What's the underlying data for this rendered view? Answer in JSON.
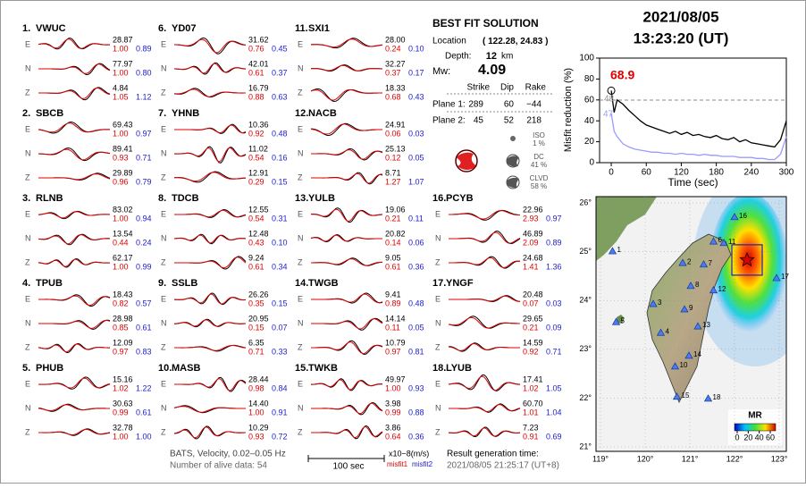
{
  "component_labels": [
    "E",
    "N",
    "Z"
  ],
  "stations": [
    {
      "num": "1.",
      "name": "VWUC",
      "components": [
        {
          "amp": "28.87",
          "misfit1": "1.00",
          "misfit2": "0.89"
        },
        {
          "amp": "77.97",
          "misfit1": "1.00",
          "misfit2": "0.80"
        },
        {
          "amp": "4.84",
          "misfit1": "1.05",
          "misfit2": "1.12"
        }
      ]
    },
    {
      "num": "2.",
      "name": "SBCB",
      "components": [
        {
          "amp": "69.43",
          "misfit1": "1.00",
          "misfit2": "0.97"
        },
        {
          "amp": "89.41",
          "misfit1": "0.93",
          "misfit2": "0.71"
        },
        {
          "amp": "29.89",
          "misfit1": "0.96",
          "misfit2": "0.79"
        }
      ]
    },
    {
      "num": "3.",
      "name": "RLNB",
      "components": [
        {
          "amp": "83.02",
          "misfit1": "1.00",
          "misfit2": "0.94"
        },
        {
          "amp": "13.54",
          "misfit1": "0.44",
          "misfit2": "0.24"
        },
        {
          "amp": "62.17",
          "misfit1": "1.00",
          "misfit2": "0.99"
        }
      ]
    },
    {
      "num": "4.",
      "name": "TPUB",
      "components": [
        {
          "amp": "18.43",
          "misfit1": "0.82",
          "misfit2": "0.57"
        },
        {
          "amp": "28.98",
          "misfit1": "0.85",
          "misfit2": "0.61"
        },
        {
          "amp": "12.09",
          "misfit1": "0.97",
          "misfit2": "0.83"
        }
      ]
    },
    {
      "num": "5.",
      "name": "PHUB",
      "components": [
        {
          "amp": "15.16",
          "misfit1": "1.02",
          "misfit2": "1.22"
        },
        {
          "amp": "30.63",
          "misfit1": "0.99",
          "misfit2": "0.61"
        },
        {
          "amp": "32.78",
          "misfit1": "1.00",
          "misfit2": "1.00"
        }
      ]
    },
    {
      "num": "6.",
      "name": "YD07",
      "components": [
        {
          "amp": "31.62",
          "misfit1": "0.76",
          "misfit2": "0.45"
        },
        {
          "amp": "42.01",
          "misfit1": "0.61",
          "misfit2": "0.37"
        },
        {
          "amp": "16.79",
          "misfit1": "0.88",
          "misfit2": "0.63"
        }
      ]
    },
    {
      "num": "7.",
      "name": "YHNB",
      "components": [
        {
          "amp": "10.36",
          "misfit1": "0.92",
          "misfit2": "0.48"
        },
        {
          "amp": "11.02",
          "misfit1": "0.54",
          "misfit2": "0.16"
        },
        {
          "amp": "12.91",
          "misfit1": "0.29",
          "misfit2": "0.15"
        }
      ]
    },
    {
      "num": "8.",
      "name": "TDCB",
      "components": [
        {
          "amp": "12.55",
          "misfit1": "0.54",
          "misfit2": "0.31"
        },
        {
          "amp": "12.48",
          "misfit1": "0.43",
          "misfit2": "0.10"
        },
        {
          "amp": "9.24",
          "misfit1": "0.61",
          "misfit2": "0.34"
        }
      ]
    },
    {
      "num": "9.",
      "name": "SSLB",
      "components": [
        {
          "amp": "26.26",
          "misfit1": "0.35",
          "misfit2": "0.15"
        },
        {
          "amp": "20.95",
          "misfit1": "0.15",
          "misfit2": "0.07"
        },
        {
          "amp": "6.35",
          "misfit1": "0.71",
          "misfit2": "0.33"
        }
      ]
    },
    {
      "num": "10.",
      "name": "MASB",
      "components": [
        {
          "amp": "28.44",
          "misfit1": "0.98",
          "misfit2": "0.84"
        },
        {
          "amp": "14.40",
          "misfit1": "1.00",
          "misfit2": "0.91"
        },
        {
          "amp": "10.29",
          "misfit1": "0.93",
          "misfit2": "0.72"
        }
      ]
    },
    {
      "num": "11.",
      "name": "SXI1",
      "components": [
        {
          "amp": "28.00",
          "misfit1": "0.24",
          "misfit2": "0.10"
        },
        {
          "amp": "32.27",
          "misfit1": "0.37",
          "misfit2": "0.17"
        },
        {
          "amp": "18.33",
          "misfit1": "0.68",
          "misfit2": "0.43"
        }
      ]
    },
    {
      "num": "12.",
      "name": "NACB",
      "components": [
        {
          "amp": "24.91",
          "misfit1": "0.06",
          "misfit2": "0.03"
        },
        {
          "amp": "25.13",
          "misfit1": "0.12",
          "misfit2": "0.05"
        },
        {
          "amp": "8.71",
          "misfit1": "1.27",
          "misfit2": "1.07"
        }
      ]
    },
    {
      "num": "13.",
      "name": "YULB",
      "components": [
        {
          "amp": "19.06",
          "misfit1": "0.21",
          "misfit2": "0.11"
        },
        {
          "amp": "20.82",
          "misfit1": "0.14",
          "misfit2": "0.06"
        },
        {
          "amp": "9.05",
          "misfit1": "0.61",
          "misfit2": "0.36"
        }
      ]
    },
    {
      "num": "14.",
      "name": "TWGB",
      "components": [
        {
          "amp": "9.41",
          "misfit1": "0.89",
          "misfit2": "0.48"
        },
        {
          "amp": "14.14",
          "misfit1": "0.11",
          "misfit2": "0.05"
        },
        {
          "amp": "10.79",
          "misfit1": "0.97",
          "misfit2": "0.81"
        }
      ]
    },
    {
      "num": "15.",
      "name": "TWKB",
      "components": [
        {
          "amp": "49.97",
          "misfit1": "1.00",
          "misfit2": "0.93"
        },
        {
          "amp": "3.98",
          "misfit1": "0.99",
          "misfit2": "0.88"
        },
        {
          "amp": "3.86",
          "misfit1": "0.64",
          "misfit2": "0.36"
        }
      ]
    },
    {
      "num": "16.",
      "name": "PCYB",
      "components": [
        {
          "amp": "22.96",
          "misfit1": "2.93",
          "misfit2": "0.97"
        },
        {
          "amp": "46.89",
          "misfit1": "2.09",
          "misfit2": "0.89"
        },
        {
          "amp": "24.68",
          "misfit1": "1.41",
          "misfit2": "1.36"
        }
      ]
    },
    {
      "num": "17.",
      "name": "YNGF",
      "components": [
        {
          "amp": "20.48",
          "misfit1": "0.07",
          "misfit2": "0.03"
        },
        {
          "amp": "29.65",
          "misfit1": "0.21",
          "misfit2": "0.09"
        },
        {
          "amp": "14.59",
          "misfit1": "0.92",
          "misfit2": "0.71"
        }
      ]
    },
    {
      "num": "18.",
      "name": "LYUB",
      "components": [
        {
          "amp": "17.41",
          "misfit1": "1.02",
          "misfit2": "1.05"
        },
        {
          "amp": "60.70",
          "misfit1": "1.01",
          "misfit2": "1.04"
        },
        {
          "amp": "7.23",
          "misfit1": "0.91",
          "misfit2": "0.69"
        }
      ]
    }
  ],
  "solution": {
    "title": "BEST FIT SOLUTION",
    "location_label": "Location",
    "location": [
      122.28,
      24.83
    ],
    "depth_label": "Depth:",
    "depth": 12,
    "depth_unit": "km",
    "mw_label": "Mw:",
    "mw": 4.09,
    "plane_headers": [
      "Strike",
      "Dip",
      "Rake"
    ],
    "planes": [
      {
        "label": "Plane 1:",
        "values": [
          "289",
          "60",
          "−44"
        ]
      },
      {
        "label": "Plane 2:",
        "values": [
          "45",
          "52",
          "218"
        ]
      }
    ],
    "decomposition": [
      {
        "label": "ISO",
        "value": "1 %"
      },
      {
        "label": "DC",
        "value": "41 %"
      },
      {
        "label": "CLVD",
        "value": "58 %"
      }
    ]
  },
  "event": {
    "date": "2021/08/05",
    "time": "13:23:20  (UT)"
  },
  "mr_plot": {
    "type": "line",
    "ylabel": "Misfit reduction (%)",
    "xlabel": "Time (sec)",
    "xlim": [
      -20,
      300
    ],
    "ylim": [
      0,
      100
    ],
    "xticks": [
      0,
      60,
      120,
      180,
      240,
      300
    ],
    "yticks": [
      0,
      20,
      40,
      60,
      80,
      100
    ],
    "x": [
      0,
      5,
      10,
      20,
      30,
      40,
      50,
      60,
      70,
      80,
      90,
      100,
      110,
      120,
      130,
      140,
      150,
      160,
      170,
      180,
      190,
      200,
      210,
      220,
      230,
      240,
      250,
      260,
      270,
      280,
      290,
      300
    ],
    "series": [
      {
        "color": "#000000",
        "values": [
          68.9,
          48,
          60,
          56,
          50,
          45,
          40,
          36,
          34,
          32,
          30,
          28,
          30,
          27,
          29,
          26,
          27,
          25,
          24,
          26,
          23,
          22,
          24,
          20,
          22,
          19,
          18,
          17,
          16,
          15,
          22,
          40
        ]
      },
      {
        "color": "#9a9aff",
        "values": [
          47,
          30,
          25,
          18,
          15,
          13,
          12,
          11,
          10,
          10,
          9,
          9,
          8,
          9,
          8,
          8,
          7,
          8,
          7,
          7,
          6,
          6,
          6,
          5,
          5,
          5,
          4,
          4,
          3,
          3,
          8,
          25
        ]
      }
    ]
  },
  "map": {
    "lat_ticks": [
      {
        "value": 26,
        "label": "26°"
      },
      {
        "value": 25,
        "label": "25°"
      },
      {
        "value": 24,
        "label": "24°"
      },
      {
        "value": 23,
        "label": "23°"
      },
      {
        "value": 22,
        "label": "22°"
      },
      {
        "value": 21,
        "label": "21°"
      }
    ],
    "lon_ticks": [
      {
        "value": 119,
        "label": "119°"
      },
      {
        "value": 120,
        "label": "120°"
      },
      {
        "value": 121,
        "label": "121°"
      },
      {
        "value": 122,
        "label": "122°"
      },
      {
        "value": 123,
        "label": "123°"
      }
    ],
    "stations": [
      {
        "label": "1",
        "lon": 119.27,
        "lat": 25.01
      },
      {
        "label": "2",
        "lon": 120.84,
        "lat": 24.77
      },
      {
        "label": "3",
        "lon": 120.18,
        "lat": 23.93
      },
      {
        "label": "4",
        "lon": 120.35,
        "lat": 23.34
      },
      {
        "label": "5",
        "lon": 119.35,
        "lat": 23.56
      },
      {
        "label": "6",
        "lon": 121.53,
        "lat": 25.21
      },
      {
        "label": "7",
        "lon": 121.31,
        "lat": 24.74
      },
      {
        "label": "8",
        "lon": 121.02,
        "lat": 24.3
      },
      {
        "label": "9",
        "lon": 120.88,
        "lat": 23.82
      },
      {
        "label": "10",
        "lon": 120.67,
        "lat": 22.65
      },
      {
        "label": "11",
        "lon": 121.76,
        "lat": 25.18
      },
      {
        "label": "12",
        "lon": 121.53,
        "lat": 24.21
      },
      {
        "label": "13",
        "lon": 121.18,
        "lat": 23.47
      },
      {
        "label": "14",
        "lon": 120.98,
        "lat": 22.87
      },
      {
        "label": "15",
        "lon": 120.71,
        "lat": 22.03
      },
      {
        "label": "16",
        "lon": 122.0,
        "lat": 25.71
      },
      {
        "label": "17",
        "lon": 122.94,
        "lat": 24.46
      },
      {
        "label": "18",
        "lon": 121.41,
        "lat": 21.99
      }
    ],
    "legend_title": "MR",
    "legend_ticks": [
      0,
      20,
      40,
      60
    ]
  },
  "footer": {
    "filter": "BATS, Velocity, 0.02–0.05 Hz",
    "alive": "Number of alive data: 54",
    "scale": "100 sec",
    "unit": "x10−8(m/s)",
    "misfit1": "misfit1",
    "misfit2": "misfit2",
    "result_label": "Result generation time:",
    "result_time": "2021/08/05 21:25:17 (UT+8)"
  }
}
